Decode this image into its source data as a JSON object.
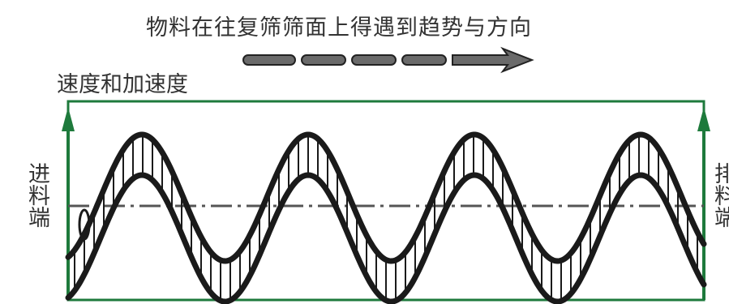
{
  "title": "物料在往复筛筛面上得遇到趋势与方向",
  "axis_label": "速度和加速度",
  "feed_end_label": "进料端",
  "discharge_end_label": "排料端",
  "colors": {
    "frame": "#1e7a3c",
    "wave": "#1a1a1a",
    "centerline": "#555555"
  }
}
